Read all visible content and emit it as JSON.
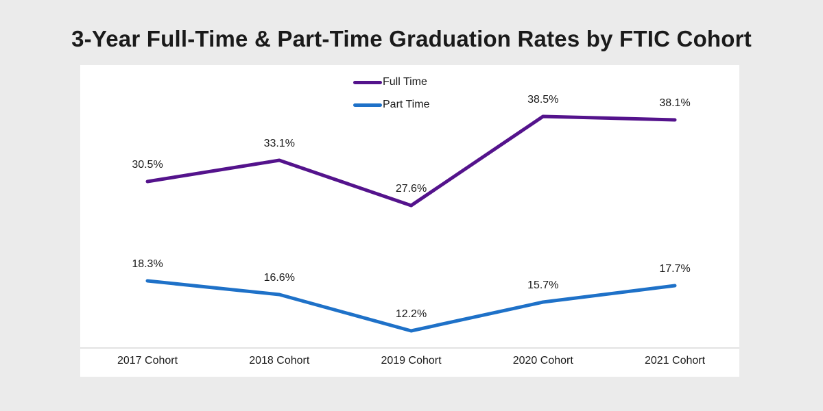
{
  "page": {
    "background_color": "#EBEBEB",
    "panel_color": "#FFFFFF",
    "text_color": "#1A1A1A"
  },
  "chart_data": {
    "type": "line",
    "title": "3-Year Full-Time & Part-Time Graduation Rates by FTIC Cohort",
    "categories": [
      "2017 Cohort",
      "2018 Cohort",
      "2019 Cohort",
      "2020 Cohort",
      "2021 Cohort"
    ],
    "series": [
      {
        "name": "Full Time",
        "color": "#54138C",
        "values": [
          30.5,
          33.1,
          27.6,
          38.5,
          38.1
        ],
        "data_labels": [
          "30.5%",
          "33.1%",
          "27.6%",
          "38.5%",
          "38.1%"
        ]
      },
      {
        "name": "Part Time",
        "color": "#1E71C8",
        "values": [
          18.3,
          16.6,
          12.2,
          15.7,
          17.7
        ],
        "data_labels": [
          "18.3%",
          "16.6%",
          "12.2%",
          "15.7%",
          "17.7%"
        ]
      }
    ],
    "legend": {
      "position": "top-center",
      "entries": [
        "Full Time",
        "Part Time"
      ]
    },
    "axes": {
      "xlabel": "",
      "ylabel": "",
      "y_axis_visible": false,
      "grid": false,
      "x_axis_line_color": "#D9D9D9",
      "ylim": [
        0,
        45
      ]
    },
    "value_format": "percent"
  }
}
